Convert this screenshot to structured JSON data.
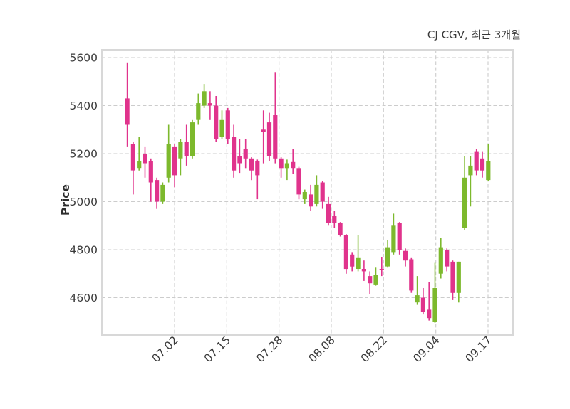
{
  "header": {
    "title": "CJ CGV, 최근 3개월"
  },
  "chart_data": {
    "type": "candlestick",
    "title": "CJ CGV, 최근 3개월",
    "xlabel": "",
    "ylabel": "Price",
    "x_tick_labels": [
      "07.02",
      "07.15",
      "07.28",
      "08.08",
      "08.22",
      "09.04",
      "09.17"
    ],
    "y_tick_labels": [
      "5600",
      "5400",
      "5200",
      "5000",
      "4800",
      "4600"
    ],
    "y_tick_values": [
      5600,
      5400,
      5200,
      5000,
      4800,
      4600
    ],
    "ylim": [
      4444,
      5633
    ],
    "grid": true,
    "legend": "none",
    "up_color": "#7db92d",
    "down_color": "#e0338c",
    "candle_columns": [
      "open",
      "high",
      "low",
      "close"
    ],
    "candles": [
      [
        5430,
        5580,
        5230,
        5320
      ],
      [
        5240,
        5250,
        5030,
        5130
      ],
      [
        5140,
        5270,
        5130,
        5170
      ],
      [
        5200,
        5230,
        5100,
        5160
      ],
      [
        5170,
        5180,
        5000,
        5080
      ],
      [
        5090,
        5100,
        4970,
        5000
      ],
      [
        5000,
        5080,
        4990,
        5070
      ],
      [
        5100,
        5320,
        5080,
        5240
      ],
      [
        5230,
        5240,
        5060,
        5110
      ],
      [
        5180,
        5260,
        5110,
        5250
      ],
      [
        5250,
        5320,
        5150,
        5190
      ],
      [
        5190,
        5340,
        5180,
        5330
      ],
      [
        5340,
        5450,
        5320,
        5410
      ],
      [
        5400,
        5490,
        5390,
        5460
      ],
      [
        5410,
        5460,
        5340,
        5400
      ],
      [
        5400,
        5440,
        5250,
        5260
      ],
      [
        5270,
        5380,
        5260,
        5340
      ],
      [
        5380,
        5390,
        5240,
        5260
      ],
      [
        5270,
        5320,
        5100,
        5130
      ],
      [
        5190,
        5260,
        5120,
        5160
      ],
      [
        5220,
        5260,
        5140,
        5180
      ],
      [
        5180,
        5185,
        5090,
        5130
      ],
      [
        5170,
        5175,
        5010,
        5110
      ],
      [
        5300,
        5380,
        5160,
        5290
      ],
      [
        5330,
        5370,
        5170,
        5190
      ],
      [
        5360,
        5540,
        5160,
        5180
      ],
      [
        5180,
        5185,
        5100,
        5140
      ],
      [
        5140,
        5175,
        5090,
        5160
      ],
      [
        5165,
        5220,
        5115,
        5140
      ],
      [
        5140,
        5145,
        5010,
        5030
      ],
      [
        5010,
        5050,
        4990,
        5040
      ],
      [
        5030,
        5070,
        4960,
        4980
      ],
      [
        4990,
        5110,
        4980,
        5070
      ],
      [
        5080,
        5085,
        4970,
        5000
      ],
      [
        4990,
        5020,
        4900,
        4910
      ],
      [
        4940,
        4960,
        4890,
        4910
      ],
      [
        4910,
        4915,
        4855,
        4860
      ],
      [
        4860,
        4865,
        4700,
        4720
      ],
      [
        4780,
        4790,
        4710,
        4730
      ],
      [
        4720,
        4860,
        4710,
        4765
      ],
      [
        4720,
        4755,
        4670,
        4710
      ],
      [
        4690,
        4710,
        4615,
        4660
      ],
      [
        4655,
        4725,
        4650,
        4695
      ],
      [
        4720,
        4770,
        4690,
        4715
      ],
      [
        4730,
        4840,
        4725,
        4810
      ],
      [
        4790,
        4950,
        4780,
        4900
      ],
      [
        4910,
        4915,
        4780,
        4800
      ],
      [
        4795,
        4805,
        4730,
        4755
      ],
      [
        4760,
        4765,
        4620,
        4630
      ],
      [
        4580,
        4690,
        4570,
        4610
      ],
      [
        4600,
        4640,
        4530,
        4540
      ],
      [
        4550,
        4665,
        4505,
        4515
      ],
      [
        4500,
        4745,
        4495,
        4640
      ],
      [
        4700,
        4850,
        4680,
        4810
      ],
      [
        4800,
        4805,
        4710,
        4730
      ],
      [
        4750,
        4755,
        4590,
        4620
      ],
      [
        4620,
        4750,
        4580,
        4750
      ],
      [
        4890,
        5190,
        4880,
        5100
      ],
      [
        5110,
        5190,
        4980,
        5150
      ],
      [
        5210,
        5220,
        5110,
        5130
      ],
      [
        5180,
        5210,
        5100,
        5130
      ],
      [
        5090,
        5240,
        5085,
        5170
      ]
    ]
  }
}
